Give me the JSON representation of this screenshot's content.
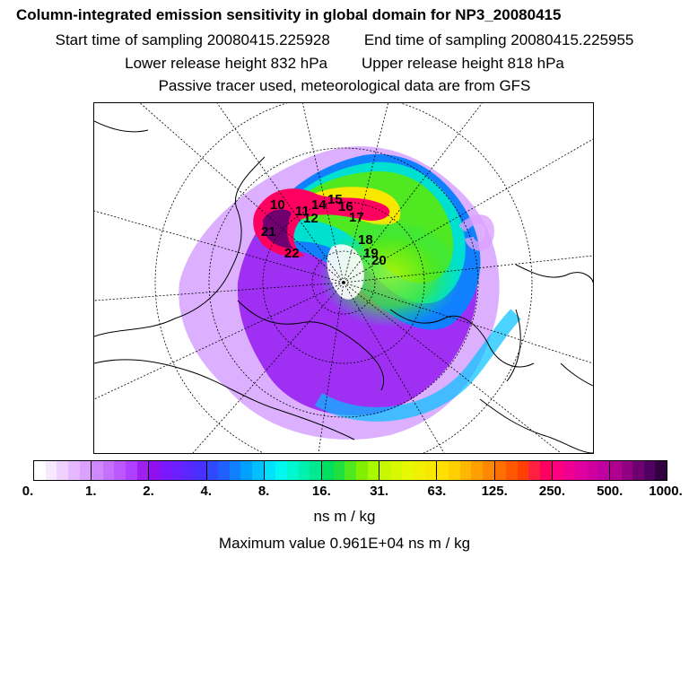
{
  "title": "Column-integrated emission sensitivity in global domain for NP3_20080415",
  "start_label": "Start time of sampling 20080415.225928",
  "end_label": "End time of sampling 20080415.225955",
  "lower_label": "Lower release height  832 hPa",
  "upper_label": "Upper release height  818 hPa",
  "tracer_label": "Passive tracer used, meteorological data are from GFS",
  "colorbar": {
    "ticks": [
      "0.",
      "1.",
      "2.",
      "4.",
      "8.",
      "16.",
      "31.",
      "63.",
      "125.",
      "250.",
      "500.",
      "1000."
    ],
    "segments": [
      [
        "#ffffff",
        "#f8e8ff",
        "#f0d0ff",
        "#e6b8ff",
        "#dca0ff"
      ],
      [
        "#d088ff",
        "#c670ff",
        "#bb58ff",
        "#b040ff",
        "#a020f0"
      ],
      [
        "#9010f0",
        "#7a18ff",
        "#6a20ff",
        "#5a28ff",
        "#4830ff"
      ],
      [
        "#3048ff",
        "#2060ff",
        "#1080ff",
        "#00a0ff",
        "#00c0ff"
      ],
      [
        "#00e0ff",
        "#00f8f0",
        "#00f8d0",
        "#00f0b0",
        "#00e890"
      ],
      [
        "#00e060",
        "#20e040",
        "#50e820",
        "#80f000",
        "#a8f800"
      ],
      [
        "#c8f800",
        "#d8f800",
        "#e8f800",
        "#f0f000",
        "#f8e800"
      ],
      [
        "#ffe000",
        "#ffd000",
        "#ffb800",
        "#ffa000",
        "#ff8800"
      ],
      [
        "#ff7000",
        "#ff5800",
        "#ff4000",
        "#ff2040",
        "#ff0060"
      ],
      [
        "#ff0080",
        "#f00090",
        "#e000a0",
        "#d000a0",
        "#c000a0"
      ],
      [
        "#b00090",
        "#900080",
        "#700070",
        "#500060",
        "#300040"
      ]
    ]
  },
  "unit": "ns m / kg",
  "max_value": "Maximum value  0.961E+04 ns m / kg",
  "trajectory_labels": [
    "10",
    "11",
    "12",
    "14",
    "15",
    "16",
    "17",
    "18",
    "19",
    "20",
    "21",
    "22"
  ]
}
